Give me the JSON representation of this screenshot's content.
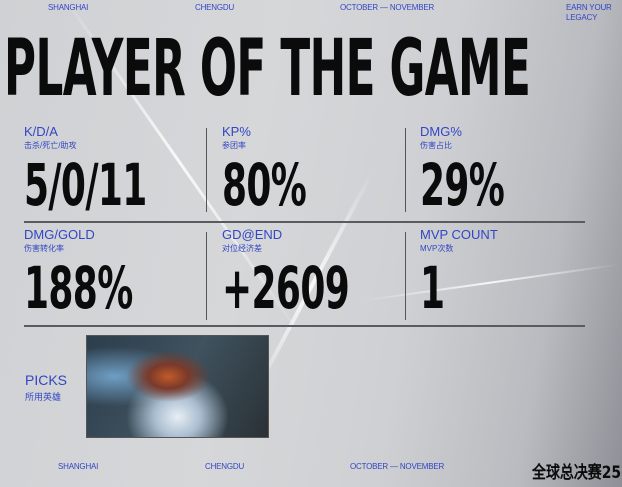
{
  "header": {
    "city1": "SHANGHAI",
    "city2": "CHENGDU",
    "dates": "OCTOBER — NOVEMBER",
    "slogan_line1": "EARN YOUR",
    "slogan_line2": "LEGACY"
  },
  "title": "PLAYER OF THE GAME",
  "stats": [
    {
      "label": "K/D/A",
      "sublabel": "击杀/死亡/助攻",
      "value": "5/0/11"
    },
    {
      "label": "KP%",
      "sublabel": "参团率",
      "value": "80%"
    },
    {
      "label": "DMG%",
      "sublabel": "伤害占比",
      "value": "29%"
    },
    {
      "label": "DMG/GOLD",
      "sublabel": "伤害转化率",
      "value": "188%"
    },
    {
      "label": "GD@END",
      "sublabel": "对位经济差",
      "value": "+2609"
    },
    {
      "label": "MVP COUNT",
      "sublabel": "MVP次数",
      "value": "1"
    }
  ],
  "picks": {
    "label": "PICKS",
    "sublabel": "所用英雄"
  },
  "footer": {
    "city1": "SHANGHAI",
    "city2": "CHENGDU",
    "dates": "OCTOBER — NOVEMBER",
    "logo": "全球总决赛25"
  },
  "colors": {
    "accent": "#3346c4",
    "text": "#0b0b0c"
  }
}
